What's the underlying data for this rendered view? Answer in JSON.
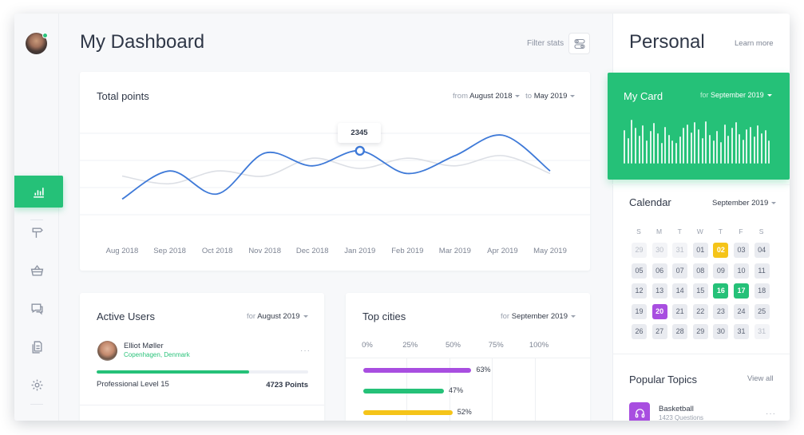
{
  "main": {
    "title": "My Dashboard",
    "filter_label": "Filter stats"
  },
  "total_points": {
    "title": "Total points",
    "from_label": "from",
    "from_value": "August 2018",
    "to_label": "to",
    "to_value": "May 2019",
    "tooltip_value": "2345"
  },
  "chart_data": {
    "type": "line",
    "title": "Total points",
    "categories": [
      "Aug 2018",
      "Sep 2018",
      "Oct 2018",
      "Nov 2018",
      "Dec 2018",
      "Jan 2019",
      "Feb 2019",
      "Mar 2019",
      "Apr 2019",
      "May 2019"
    ],
    "series": [
      {
        "color": "#3f7ad8",
        "values": [
          1400,
          1950,
          1500,
          2300,
          2050,
          2345,
          1900,
          2250,
          2650,
          1950
        ]
      },
      {
        "color": "#dcdfe5",
        "values": [
          1850,
          1700,
          1950,
          1850,
          2200,
          2000,
          2200,
          2050,
          2250,
          1900
        ]
      }
    ],
    "highlight": {
      "category": "Jan 2019",
      "value": 2345
    },
    "ylim": [
      1000,
      3000
    ],
    "grid": true
  },
  "active_users": {
    "title": "Active Users",
    "for_label": "for",
    "for_value": "August 2019",
    "user_name": "Elliot Møller",
    "user_location": "Copenhagen, Denmark",
    "more": "···",
    "progress": 0.72,
    "level": "Professional Level 15",
    "points": "4723 Points"
  },
  "top_cities": {
    "title": "Top cities",
    "for_label": "for",
    "for_value": "September 2019",
    "ticks": [
      "0%",
      "25%",
      "50%",
      "75%",
      "100%"
    ],
    "bars": [
      {
        "value": 63,
        "label": "63%",
        "color": "#a84ee0"
      },
      {
        "value": 47,
        "label": "47%",
        "color": "#25c178"
      },
      {
        "value": 52,
        "label": "52%",
        "color": "#f5c419"
      }
    ]
  },
  "personal": {
    "title": "Personal",
    "learn_more": "Learn more",
    "my_card": {
      "title": "My Card",
      "for_label": "for",
      "for_value": "September 2019",
      "bars": [
        0.72,
        0.55,
        0.95,
        0.78,
        0.6,
        0.82,
        0.5,
        0.7,
        0.88,
        0.66,
        0.45,
        0.8,
        0.62,
        0.5,
        0.44,
        0.58,
        0.77,
        0.85,
        0.68,
        0.9,
        0.74,
        0.56,
        0.92,
        0.62,
        0.5,
        0.7,
        0.46,
        0.84,
        0.6,
        0.78,
        0.9,
        0.64,
        0.52,
        0.74,
        0.8,
        0.58,
        0.82,
        0.66,
        0.72,
        0.5
      ]
    },
    "calendar": {
      "title": "Calendar",
      "month": "September 2019",
      "days_of_week": [
        "S",
        "M",
        "T",
        "W",
        "T",
        "F",
        "S"
      ],
      "weeks": [
        [
          {
            "d": "29",
            "s": "dim"
          },
          {
            "d": "30",
            "s": "dim"
          },
          {
            "d": "31",
            "s": "dim"
          },
          {
            "d": "01",
            "s": ""
          },
          {
            "d": "02",
            "s": "y"
          },
          {
            "d": "03",
            "s": ""
          },
          {
            "d": "04",
            "s": ""
          }
        ],
        [
          {
            "d": "05",
            "s": ""
          },
          {
            "d": "06",
            "s": ""
          },
          {
            "d": "07",
            "s": ""
          },
          {
            "d": "08",
            "s": ""
          },
          {
            "d": "09",
            "s": ""
          },
          {
            "d": "10",
            "s": ""
          },
          {
            "d": "11",
            "s": ""
          }
        ],
        [
          {
            "d": "12",
            "s": ""
          },
          {
            "d": "13",
            "s": ""
          },
          {
            "d": "14",
            "s": ""
          },
          {
            "d": "15",
            "s": ""
          },
          {
            "d": "16",
            "s": "g"
          },
          {
            "d": "17",
            "s": "g"
          },
          {
            "d": "18",
            "s": ""
          }
        ],
        [
          {
            "d": "19",
            "s": ""
          },
          {
            "d": "20",
            "s": "p"
          },
          {
            "d": "21",
            "s": ""
          },
          {
            "d": "22",
            "s": ""
          },
          {
            "d": "23",
            "s": ""
          },
          {
            "d": "24",
            "s": ""
          },
          {
            "d": "25",
            "s": ""
          }
        ],
        [
          {
            "d": "26",
            "s": ""
          },
          {
            "d": "27",
            "s": ""
          },
          {
            "d": "28",
            "s": ""
          },
          {
            "d": "29",
            "s": ""
          },
          {
            "d": "30",
            "s": ""
          },
          {
            "d": "31",
            "s": ""
          },
          {
            "d": "31",
            "s": "dim"
          }
        ]
      ]
    },
    "popular_topics": {
      "title": "Popular Topics",
      "view_all": "View all",
      "item_name": "Basketball",
      "item_sub": "1423 Questions",
      "more": "···"
    }
  },
  "nav": {
    "icons": [
      "bar-chart-icon",
      "signpost-icon",
      "basket-icon",
      "chat-icon",
      "documents-icon",
      "settings-icon"
    ]
  }
}
